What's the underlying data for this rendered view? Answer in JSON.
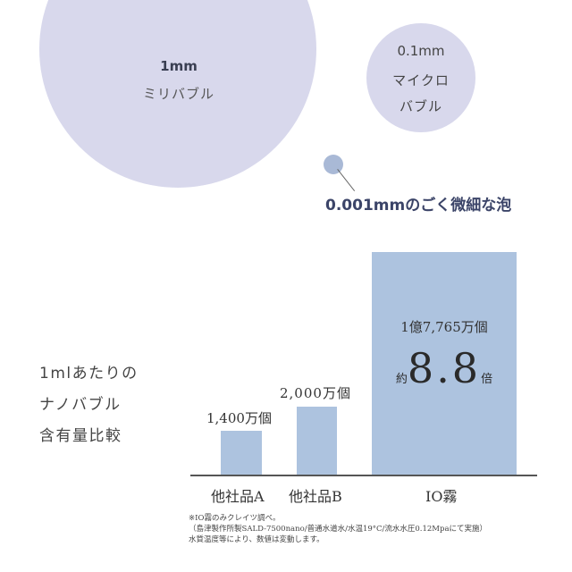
{
  "bubbles": {
    "milli": {
      "size": "1mm",
      "name": "ミリバブル"
    },
    "micro": {
      "size": "0.1mm",
      "name_line1": "マイクロ",
      "name_line2": "バブル"
    },
    "nano": {
      "caption": "0.001mmのごく微細な泡"
    }
  },
  "side_title": {
    "line1": "1mlあたりの",
    "line2": "ナノバブル",
    "line3": "含有量比較"
  },
  "chart_data": {
    "type": "bar",
    "title": "1mlあたりのナノバブル含有量比較",
    "categories": [
      "他社品A",
      "他社品B",
      "IO霧"
    ],
    "values": [
      14000000,
      20000000,
      177650000
    ],
    "value_labels": [
      "1,400万個",
      "2,000万個",
      "1億7,765万個"
    ],
    "unit": "個",
    "annotation": {
      "prefix": "約",
      "value": "8.8",
      "suffix": "倍"
    },
    "xlabel": "",
    "ylabel": "",
    "grid": false,
    "colors": {
      "bar": "#adc3df",
      "axis": "#555555"
    }
  },
  "bars": {
    "a": {
      "label": "他社品A",
      "value": "1,400万個"
    },
    "b": {
      "label": "他社品B",
      "value": "2,000万個"
    },
    "io": {
      "label": "IO霧",
      "value": "1億7,765万個",
      "ratio_prefix": "約",
      "ratio": "8.8",
      "ratio_suffix": "倍"
    }
  },
  "notes": {
    "line1": "※IO霧のみクレイツ調べ。",
    "line2": "（島津製作所製SALD-7500nano/普通水道水/水温19°C/流水水圧0.12Mpaにて実施）",
    "line3": "水質温度等により、数値は変動します。"
  },
  "colors": {
    "bubble": "#d8d8ec",
    "nano_bubble": "#a9b9d6",
    "caption": "#3b4468"
  }
}
